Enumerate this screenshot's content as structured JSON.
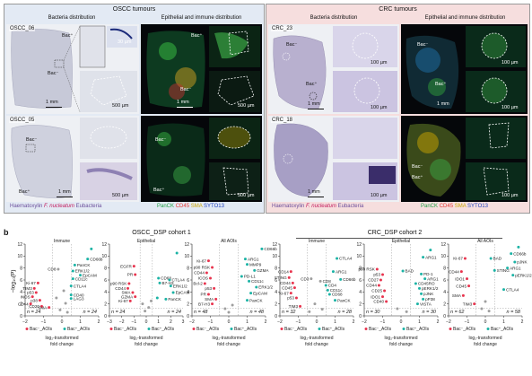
{
  "panel_a": {
    "letter": "a",
    "oscc": {
      "title": "OSCC tumours",
      "left_sub": "Bacteria distribution",
      "right_sub": "Epithelial and immune distribution",
      "row1_label": "OSCC_06",
      "row2_label": "OSCC_05",
      "legend_left": [
        "Haematoxylin",
        "F. nucleatum",
        "Eubacteria"
      ],
      "legend_right": [
        "PanCK",
        "CD45",
        "SMA",
        "SYTO13"
      ]
    },
    "crc": {
      "title": "CRC tumours",
      "left_sub": "Bacteria distribution",
      "right_sub": "Epithelial and immune distribution",
      "row1_label": "CRC_23",
      "row2_label": "CRC_18",
      "legend_left": [
        "Haematoxylin",
        "F. nucleatum",
        "Eubacteria"
      ],
      "legend_right": [
        "PanCK",
        "CD45",
        "SMA",
        "SYTO13"
      ]
    },
    "scales": {
      "mm": "1 mm",
      "um500": "500 µm",
      "um100": "100 µm",
      "um30": "30 µm"
    },
    "bac_plus": "Bac⁺",
    "bac_minus": "Bac⁻",
    "colors": {
      "oscc_bg": "#e3eaf4",
      "crc_bg": "#f6dede",
      "legend_purple": "#6b4e9b",
      "legend_pink": "#c2185b",
      "legend_green": "#22a045",
      "legend_red": "#e53935",
      "legend_yellow": "#c9a400",
      "legend_blue": "#1e3fbf"
    }
  },
  "panel_b": {
    "letter": "b",
    "cohort1": "OSCC_DSP cohort 1",
    "cohort2": "CRC_DSP cohort 2",
    "ylabel": "−log₁₀(P)",
    "xlabel_line1": "log₂-transformed",
    "xlabel_line2": "fold change",
    "legend_minus": "Bac⁻_AOIs",
    "legend_plus": "Bac⁺_AOIs",
    "colors": {
      "down": "#e8344e",
      "up": "#1bb3a5",
      "ns": "#9e9e9e"
    }
  },
  "chart_data": [
    {
      "type": "scatter",
      "title": "Immune",
      "xlim": [
        -2,
        2
      ],
      "ylim": [
        0,
        12
      ],
      "xticks": [
        -2,
        -1,
        0,
        1,
        2
      ],
      "yticks": [
        0,
        2,
        4,
        6,
        8,
        10,
        12
      ],
      "n_left": "n = 24",
      "n_right": "n = 24",
      "points": [
        {
          "x": -1.3,
          "y": 5.5,
          "label": "Ki-67",
          "s": "down"
        },
        {
          "x": -1.5,
          "y": 4.6,
          "label": "TIM3",
          "s": "down"
        },
        {
          "x": -1.4,
          "y": 3.9,
          "label": "p53",
          "s": "down"
        },
        {
          "x": -1.6,
          "y": 3.2,
          "label": "iNOS",
          "s": "down"
        },
        {
          "x": -1.2,
          "y": 2.6,
          "label": "p38",
          "s": "down"
        },
        {
          "x": -1.7,
          "y": 2.0,
          "label": "CD44",
          "s": "down"
        },
        {
          "x": -1.1,
          "y": 1.6,
          "label": "CD20",
          "s": "down"
        },
        {
          "x": 0.7,
          "y": 8.5,
          "label": "PanCK",
          "s": "up"
        },
        {
          "x": 1.4,
          "y": 9.5,
          "label": "CD66b",
          "s": "up"
        },
        {
          "x": 0.6,
          "y": 7.5,
          "label": "ERK1/2",
          "s": "up"
        },
        {
          "x": 1.0,
          "y": 6.8,
          "label": "EpCAM",
          "s": "up"
        },
        {
          "x": 0.6,
          "y": 6.2,
          "label": "CD11c",
          "s": "up"
        },
        {
          "x": 0.5,
          "y": 5.0,
          "label": "CTLA4",
          "s": "up"
        },
        {
          "x": 0.5,
          "y": 3.5,
          "label": "CD40",
          "s": "up"
        },
        {
          "x": 0.5,
          "y": 2.9,
          "label": "LAG3",
          "s": "up"
        },
        {
          "x": 1.6,
          "y": 11.2,
          "label": "",
          "s": "up"
        },
        {
          "x": -0.2,
          "y": 7.8,
          "label": "CD8",
          "s": "ns"
        },
        {
          "x": -0.7,
          "y": 1.4,
          "label": "SMA",
          "s": "down"
        },
        {
          "x": 0.1,
          "y": 4.2,
          "label": "",
          "s": "ns"
        },
        {
          "x": -0.3,
          "y": 3.0,
          "label": "",
          "s": "ns"
        },
        {
          "x": 0.2,
          "y": 2.1,
          "label": "",
          "s": "ns"
        },
        {
          "x": -0.1,
          "y": 1.0,
          "label": "",
          "s": "ns"
        },
        {
          "x": 0.3,
          "y": 0.6,
          "label": "",
          "s": "ns"
        }
      ]
    },
    {
      "type": "scatter",
      "title": "Epithelial",
      "xlim": [
        -3,
        3
      ],
      "ylim": [
        0,
        12
      ],
      "xticks": [
        -3,
        -2,
        -1,
        0,
        1,
        2,
        3
      ],
      "yticks": [
        0,
        2,
        4,
        6,
        8,
        10,
        12
      ],
      "n_left": "n = 24",
      "n_right": "n = 24",
      "points": [
        {
          "x": -1.0,
          "y": 8.3,
          "label": "EGFR",
          "s": "down"
        },
        {
          "x": -0.9,
          "y": 6.9,
          "label": "PR",
          "s": "down"
        },
        {
          "x": -1.4,
          "y": 5.4,
          "label": "p90 RSK",
          "s": "down"
        },
        {
          "x": -1.5,
          "y": 4.6,
          "label": "CD44",
          "s": "down"
        },
        {
          "x": -1.1,
          "y": 3.9,
          "label": "SMA",
          "s": "down"
        },
        {
          "x": -0.9,
          "y": 3.2,
          "label": "GZMA",
          "s": "down"
        },
        {
          "x": -1.3,
          "y": 2.5,
          "label": "Ki-67",
          "s": "down"
        },
        {
          "x": 1.0,
          "y": 6.3,
          "label": "CD68",
          "s": "up"
        },
        {
          "x": 1.1,
          "y": 5.5,
          "label": "B7-H3",
          "s": "up"
        },
        {
          "x": 1.9,
          "y": 6.0,
          "label": "CTLA4",
          "s": "up"
        },
        {
          "x": 2.0,
          "y": 5.0,
          "label": "ERK1/2",
          "s": "up"
        },
        {
          "x": 2.2,
          "y": 3.9,
          "label": "EpCAM",
          "s": "up"
        },
        {
          "x": 1.6,
          "y": 2.8,
          "label": "PanCK",
          "s": "up"
        },
        {
          "x": 2.5,
          "y": 10.5,
          "label": "",
          "s": "up"
        },
        {
          "x": 0.9,
          "y": 3.0,
          "label": "",
          "s": "up"
        },
        {
          "x": -0.3,
          "y": 2.0,
          "label": "",
          "s": "ns"
        },
        {
          "x": 0.2,
          "y": 1.4,
          "label": "",
          "s": "ns"
        },
        {
          "x": -0.1,
          "y": 0.8,
          "label": "",
          "s": "ns"
        },
        {
          "x": 0.4,
          "y": 2.5,
          "label": "",
          "s": "ns"
        }
      ]
    },
    {
      "type": "scatter",
      "title": "All AOIs",
      "xlim": [
        -2,
        2
      ],
      "ylim": [
        0,
        12
      ],
      "xticks": [
        -2,
        -1,
        0,
        1,
        2
      ],
      "yticks": [
        0,
        2,
        4,
        6,
        8,
        10,
        12
      ],
      "n_left": "n = 48",
      "n_right": "n = 48",
      "points": [
        {
          "x": -1.1,
          "y": 9.2,
          "label": "Ki-67",
          "s": "down"
        },
        {
          "x": -0.9,
          "y": 8.1,
          "label": "p90 RSK",
          "s": "down"
        },
        {
          "x": -1.2,
          "y": 7.2,
          "label": "CD44",
          "s": "down"
        },
        {
          "x": -1.0,
          "y": 6.3,
          "label": "ICOS",
          "s": "down"
        },
        {
          "x": -1.3,
          "y": 5.4,
          "label": "Bcl-2",
          "s": "down"
        },
        {
          "x": -0.8,
          "y": 4.6,
          "label": "p53",
          "s": "down"
        },
        {
          "x": -1.1,
          "y": 3.6,
          "label": "PR",
          "s": "down"
        },
        {
          "x": -0.7,
          "y": 2.8,
          "label": "SMA",
          "s": "down"
        },
        {
          "x": -0.9,
          "y": 2.0,
          "label": "B7-H3",
          "s": "down"
        },
        {
          "x": 0.9,
          "y": 9.5,
          "label": "ARG1",
          "s": "up"
        },
        {
          "x": 1.0,
          "y": 8.6,
          "label": "MMP9",
          "s": "up"
        },
        {
          "x": 1.4,
          "y": 7.6,
          "label": "GZMA",
          "s": "up"
        },
        {
          "x": 0.7,
          "y": 6.6,
          "label": "PD-L1",
          "s": "up"
        },
        {
          "x": 1.1,
          "y": 5.8,
          "label": "CD11c",
          "s": "up"
        },
        {
          "x": 1.5,
          "y": 4.8,
          "label": "ERK1/2",
          "s": "up"
        },
        {
          "x": 1.2,
          "y": 3.8,
          "label": "EpCAM",
          "s": "up"
        },
        {
          "x": 1.0,
          "y": 2.6,
          "label": "PanCK",
          "s": "up"
        },
        {
          "x": 1.8,
          "y": 11.2,
          "label": "CD66b",
          "s": "up"
        },
        {
          "x": -0.2,
          "y": 1.2,
          "label": "",
          "s": "ns"
        },
        {
          "x": 0.2,
          "y": 1.8,
          "label": "",
          "s": "ns"
        },
        {
          "x": 0.0,
          "y": 0.6,
          "label": "",
          "s": "ns"
        }
      ]
    },
    {
      "type": "scatter",
      "title": "Immune",
      "xlim": [
        -2,
        2
      ],
      "ylim": [
        0,
        12
      ],
      "xticks": [
        -2,
        -1,
        0,
        1,
        2
      ],
      "yticks": [
        0,
        2,
        4,
        6,
        8,
        10,
        12
      ],
      "n_left": "n = 32",
      "n_right": "n = 28",
      "points": [
        {
          "x": -1.4,
          "y": 7.4,
          "label": "CD14",
          "s": "down"
        },
        {
          "x": -1.5,
          "y": 6.4,
          "label": "STING",
          "s": "down"
        },
        {
          "x": -1.3,
          "y": 5.5,
          "label": "CD44",
          "s": "down"
        },
        {
          "x": -1.2,
          "y": 4.7,
          "label": "CD45",
          "s": "down"
        },
        {
          "x": -1.4,
          "y": 3.8,
          "label": "Ki-67",
          "s": "down"
        },
        {
          "x": -1.1,
          "y": 3.0,
          "label": "p53",
          "s": "down"
        },
        {
          "x": -0.9,
          "y": 1.6,
          "label": "TIM3",
          "s": "down"
        },
        {
          "x": 1.1,
          "y": 9.6,
          "label": "CTLA4",
          "s": "up"
        },
        {
          "x": 0.9,
          "y": 7.4,
          "label": "ARG1",
          "s": "up"
        },
        {
          "x": 1.3,
          "y": 6.1,
          "label": "CD66b",
          "s": "up"
        },
        {
          "x": 0.5,
          "y": 5.1,
          "label": "CD4",
          "s": "up"
        },
        {
          "x": 0.6,
          "y": 4.3,
          "label": "CD11c",
          "s": "up"
        },
        {
          "x": 0.7,
          "y": 3.6,
          "label": "CD68",
          "s": "up"
        },
        {
          "x": 1.0,
          "y": 2.6,
          "label": "PanCK",
          "s": "up"
        },
        {
          "x": -0.3,
          "y": 6.2,
          "label": "CD3",
          "s": "ns"
        },
        {
          "x": 0.2,
          "y": 5.8,
          "label": "CD8",
          "s": "ns"
        },
        {
          "x": -0.1,
          "y": 2.0,
          "label": "",
          "s": "ns"
        },
        {
          "x": 0.3,
          "y": 1.1,
          "label": "",
          "s": "ns"
        },
        {
          "x": -0.4,
          "y": 0.7,
          "label": "",
          "s": "ns"
        }
      ]
    },
    {
      "type": "scatter",
      "title": "Epithelial",
      "xlim": [
        -2,
        2
      ],
      "ylim": [
        0,
        12
      ],
      "xticks": [
        -2,
        -1,
        0,
        1,
        2
      ],
      "yticks": [
        0,
        2,
        4,
        6,
        8,
        10,
        12
      ],
      "n_left": "n = 30",
      "n_right": "n = 30",
      "points": [
        {
          "x": -1.3,
          "y": 7.8,
          "label": "p90 RSK",
          "s": "down"
        },
        {
          "x": -1.0,
          "y": 6.9,
          "label": "p53",
          "s": "down"
        },
        {
          "x": -1.1,
          "y": 6.0,
          "label": "CD27",
          "s": "down"
        },
        {
          "x": -1.2,
          "y": 5.1,
          "label": "CD44",
          "s": "down"
        },
        {
          "x": -0.9,
          "y": 4.2,
          "label": "CD25",
          "s": "down"
        },
        {
          "x": -1.0,
          "y": 3.2,
          "label": "IDO1",
          "s": "down"
        },
        {
          "x": -0.8,
          "y": 2.4,
          "label": "CD40",
          "s": "down"
        },
        {
          "x": 0.1,
          "y": 7.5,
          "label": "BAD",
          "s": "up"
        },
        {
          "x": 1.2,
          "y": 9.8,
          "label": "ARG1",
          "s": "up"
        },
        {
          "x": 1.1,
          "y": 7.0,
          "label": "PD-1",
          "s": "up"
        },
        {
          "x": 1.3,
          "y": 6.2,
          "label": "ARG1",
          "s": "up"
        },
        {
          "x": 0.8,
          "y": 5.4,
          "label": "CD45RO",
          "s": "up"
        },
        {
          "x": 1.0,
          "y": 4.6,
          "label": "pERK1/2",
          "s": "up"
        },
        {
          "x": 1.1,
          "y": 3.7,
          "label": "pJNK",
          "s": "up"
        },
        {
          "x": 1.2,
          "y": 2.8,
          "label": "pP38",
          "s": "up"
        },
        {
          "x": 0.9,
          "y": 2.0,
          "label": "VISTA",
          "s": "up"
        },
        {
          "x": 1.6,
          "y": 11.0,
          "label": "",
          "s": "up"
        },
        {
          "x": -0.2,
          "y": 1.2,
          "label": "",
          "s": "ns"
        },
        {
          "x": 0.3,
          "y": 0.7,
          "label": "",
          "s": "ns"
        }
      ]
    },
    {
      "type": "scatter",
      "title": "All AOIs",
      "xlim": [
        -2,
        2
      ],
      "ylim": [
        0,
        12
      ],
      "xticks": [
        -2,
        -1,
        0,
        1,
        2
      ],
      "yticks": [
        0,
        2,
        4,
        6,
        8,
        10,
        12
      ],
      "n_left": "n = 62",
      "n_right": "n = 58",
      "points": [
        {
          "x": -1.1,
          "y": 9.6,
          "label": "Ki-67",
          "s": "down"
        },
        {
          "x": -1.3,
          "y": 7.4,
          "label": "CD44",
          "s": "down"
        },
        {
          "x": -1.0,
          "y": 6.2,
          "label": "IDO1",
          "s": "down"
        },
        {
          "x": -0.9,
          "y": 5.0,
          "label": "CD45",
          "s": "down"
        },
        {
          "x": -1.2,
          "y": 3.4,
          "label": "SMA",
          "s": "down"
        },
        {
          "x": -0.6,
          "y": 2.0,
          "label": "TIM3",
          "s": "down"
        },
        {
          "x": 0.3,
          "y": 9.6,
          "label": "BAD",
          "s": "up"
        },
        {
          "x": 0.5,
          "y": 7.6,
          "label": "STING",
          "s": "up"
        },
        {
          "x": 1.4,
          "y": 10.4,
          "label": "CD66b",
          "s": "up"
        },
        {
          "x": 1.6,
          "y": 9.0,
          "label": "pJNK",
          "s": "up"
        },
        {
          "x": 1.2,
          "y": 8.0,
          "label": "ARG1",
          "s": "up"
        },
        {
          "x": 1.5,
          "y": 6.8,
          "label": "pERK1/2",
          "s": "up"
        },
        {
          "x": 1.0,
          "y": 4.4,
          "label": "CTLA4",
          "s": "up"
        },
        {
          "x": 1.8,
          "y": 11.5,
          "label": "",
          "s": "up"
        },
        {
          "x": -0.2,
          "y": 1.2,
          "label": "",
          "s": "ns"
        },
        {
          "x": 0.2,
          "y": 0.8,
          "label": "",
          "s": "ns"
        },
        {
          "x": 0.0,
          "y": 2.4,
          "label": "",
          "s": "ns"
        }
      ]
    }
  ]
}
